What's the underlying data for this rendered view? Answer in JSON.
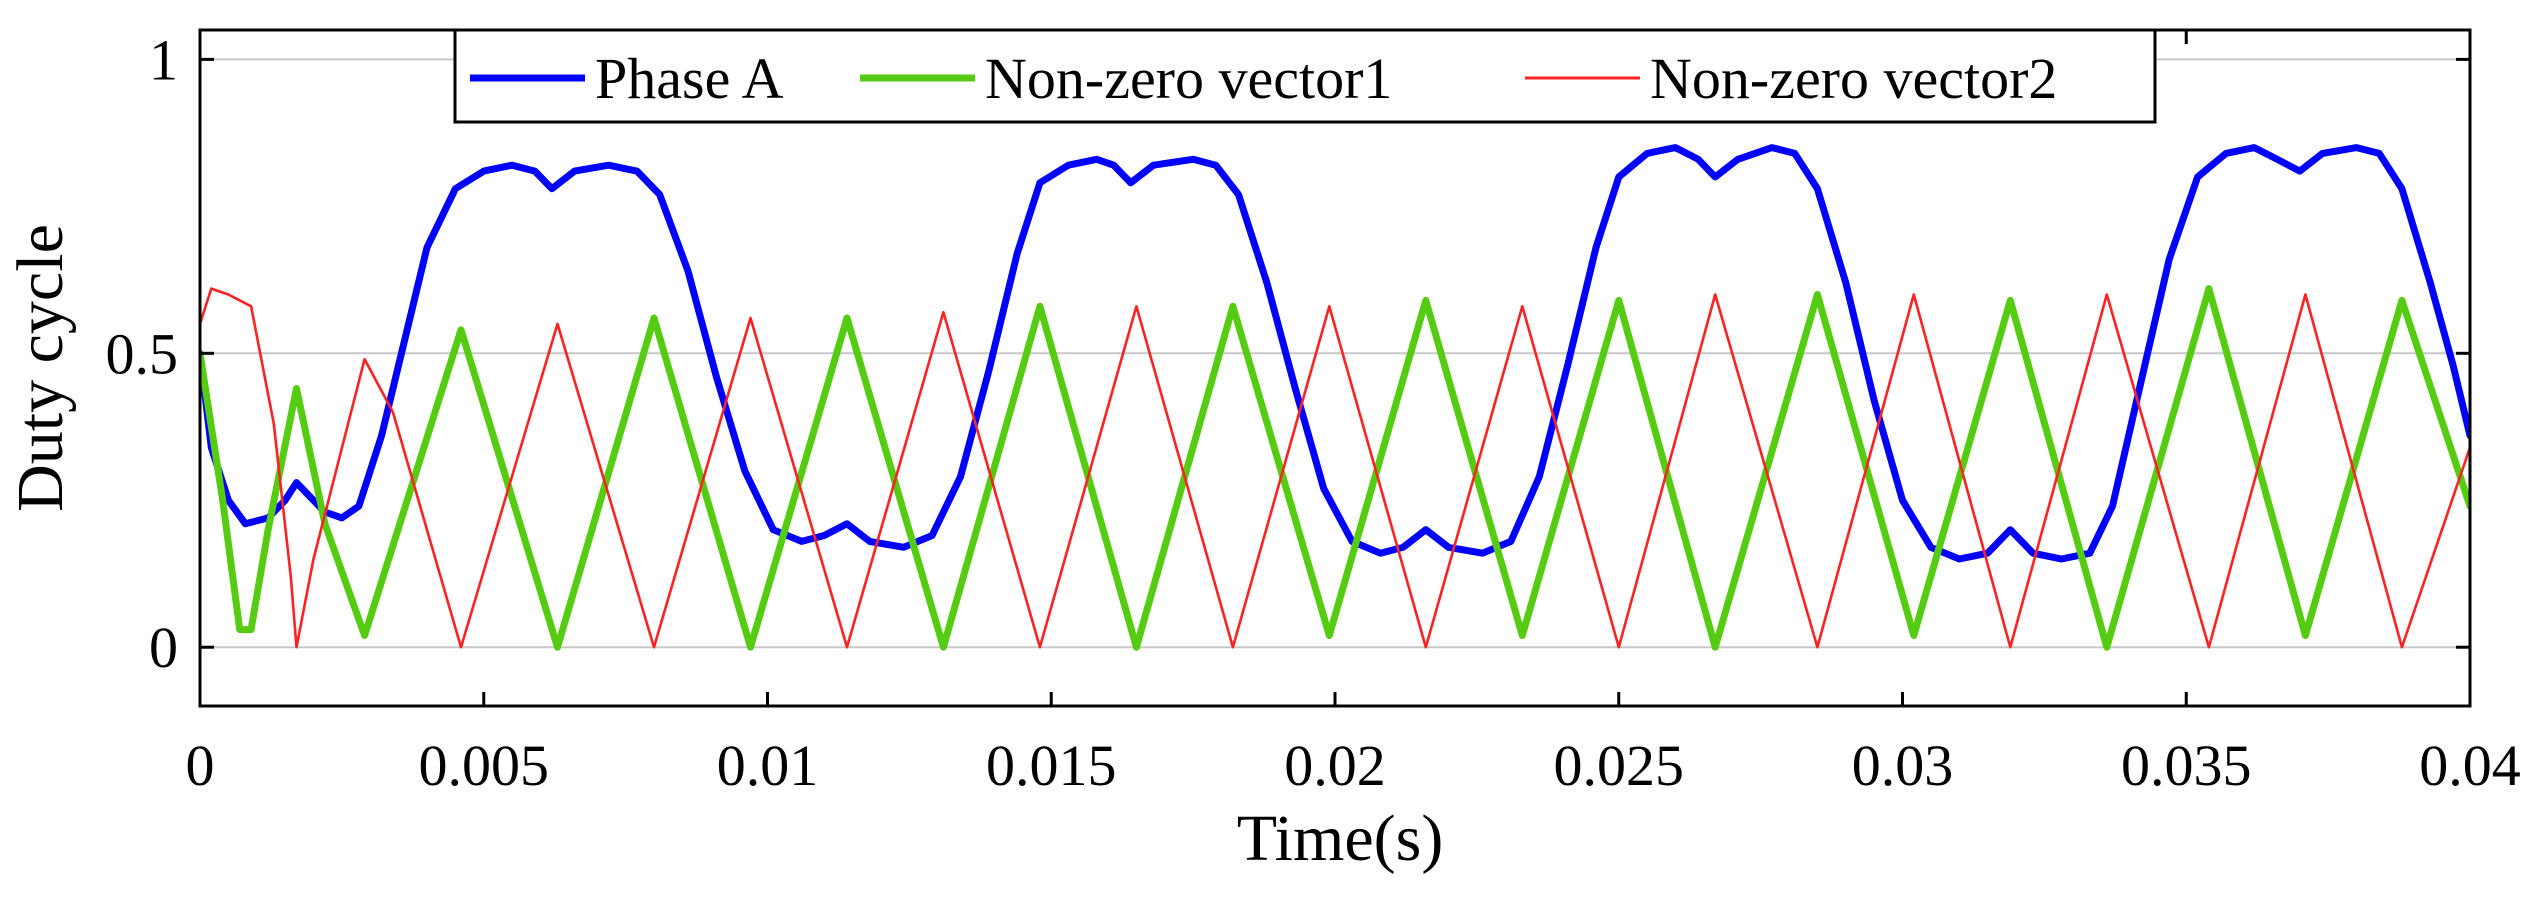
{
  "chart_data": {
    "type": "line",
    "xlabel": "Time(s)",
    "ylabel": "Duty cycle",
    "xlim": [
      0,
      0.04
    ],
    "ylim": [
      -0.1,
      1.05
    ],
    "xticks": [
      0,
      0.005,
      0.01,
      0.015,
      0.02,
      0.025,
      0.03,
      0.035,
      0.04
    ],
    "xtick_labels": [
      "0",
      "0.005",
      "0.01",
      "0.015",
      "0.02",
      "0.025",
      "0.03",
      "0.035",
      "0.04"
    ],
    "yticks": [
      0,
      0.5,
      1
    ],
    "ytick_labels": [
      "0",
      "0.5",
      "1"
    ],
    "grid": true,
    "legend_position": "top",
    "series": [
      {
        "name": "Phase A",
        "color": "#0000ff",
        "points": [
          [
            0.0,
            0.5
          ],
          [
            0.0002,
            0.34
          ],
          [
            0.0005,
            0.25
          ],
          [
            0.0008,
            0.21
          ],
          [
            0.0012,
            0.22
          ],
          [
            0.0015,
            0.25
          ],
          [
            0.0017,
            0.28
          ],
          [
            0.0019,
            0.26
          ],
          [
            0.0022,
            0.23
          ],
          [
            0.0025,
            0.22
          ],
          [
            0.0028,
            0.24
          ],
          [
            0.0032,
            0.36
          ],
          [
            0.0036,
            0.52
          ],
          [
            0.004,
            0.68
          ],
          [
            0.0045,
            0.78
          ],
          [
            0.005,
            0.81
          ],
          [
            0.0055,
            0.82
          ],
          [
            0.0059,
            0.81
          ],
          [
            0.0062,
            0.78
          ],
          [
            0.0066,
            0.81
          ],
          [
            0.0072,
            0.82
          ],
          [
            0.0077,
            0.81
          ],
          [
            0.0081,
            0.77
          ],
          [
            0.0086,
            0.64
          ],
          [
            0.0091,
            0.46
          ],
          [
            0.0096,
            0.3
          ],
          [
            0.0101,
            0.2
          ],
          [
            0.0106,
            0.18
          ],
          [
            0.011,
            0.19
          ],
          [
            0.0114,
            0.21
          ],
          [
            0.0118,
            0.18
          ],
          [
            0.0124,
            0.17
          ],
          [
            0.0129,
            0.19
          ],
          [
            0.0134,
            0.29
          ],
          [
            0.0139,
            0.47
          ],
          [
            0.0144,
            0.67
          ],
          [
            0.0148,
            0.79
          ],
          [
            0.0153,
            0.82
          ],
          [
            0.0158,
            0.83
          ],
          [
            0.0161,
            0.82
          ],
          [
            0.0164,
            0.79
          ],
          [
            0.0168,
            0.82
          ],
          [
            0.0175,
            0.83
          ],
          [
            0.0179,
            0.82
          ],
          [
            0.0183,
            0.77
          ],
          [
            0.0188,
            0.62
          ],
          [
            0.0193,
            0.44
          ],
          [
            0.0198,
            0.27
          ],
          [
            0.0203,
            0.18
          ],
          [
            0.0208,
            0.16
          ],
          [
            0.0212,
            0.17
          ],
          [
            0.0216,
            0.2
          ],
          [
            0.022,
            0.17
          ],
          [
            0.0226,
            0.16
          ],
          [
            0.0231,
            0.18
          ],
          [
            0.0236,
            0.29
          ],
          [
            0.0241,
            0.48
          ],
          [
            0.0246,
            0.68
          ],
          [
            0.025,
            0.8
          ],
          [
            0.0255,
            0.84
          ],
          [
            0.026,
            0.85
          ],
          [
            0.0264,
            0.83
          ],
          [
            0.0267,
            0.8
          ],
          [
            0.0271,
            0.83
          ],
          [
            0.0277,
            0.85
          ],
          [
            0.0281,
            0.84
          ],
          [
            0.0285,
            0.78
          ],
          [
            0.029,
            0.62
          ],
          [
            0.0295,
            0.42
          ],
          [
            0.03,
            0.25
          ],
          [
            0.0305,
            0.17
          ],
          [
            0.031,
            0.15
          ],
          [
            0.0315,
            0.16
          ],
          [
            0.0319,
            0.2
          ],
          [
            0.0323,
            0.16
          ],
          [
            0.0328,
            0.15
          ],
          [
            0.0333,
            0.16
          ],
          [
            0.0337,
            0.24
          ],
          [
            0.0342,
            0.45
          ],
          [
            0.0347,
            0.66
          ],
          [
            0.0352,
            0.8
          ],
          [
            0.0357,
            0.84
          ],
          [
            0.0362,
            0.85
          ],
          [
            0.0366,
            0.83
          ],
          [
            0.037,
            0.81
          ],
          [
            0.0374,
            0.84
          ],
          [
            0.038,
            0.85
          ],
          [
            0.0384,
            0.84
          ],
          [
            0.0388,
            0.78
          ],
          [
            0.0393,
            0.62
          ],
          [
            0.0397,
            0.48
          ],
          [
            0.04,
            0.36
          ]
        ]
      },
      {
        "name": "Non-zero vector1",
        "color": "#55cc11",
        "points": [
          [
            0.0,
            0.5
          ],
          [
            0.0004,
            0.25
          ],
          [
            0.0007,
            0.03
          ],
          [
            0.0009,
            0.03
          ],
          [
            0.0012,
            0.2
          ],
          [
            0.0017,
            0.44
          ],
          [
            0.0022,
            0.21
          ],
          [
            0.0029,
            0.02
          ],
          [
            0.0046,
            0.54
          ],
          [
            0.0063,
            0.0
          ],
          [
            0.008,
            0.56
          ],
          [
            0.0097,
            0.0
          ],
          [
            0.0114,
            0.56
          ],
          [
            0.0131,
            0.0
          ],
          [
            0.0148,
            0.58
          ],
          [
            0.0165,
            0.0
          ],
          [
            0.0182,
            0.58
          ],
          [
            0.0199,
            0.02
          ],
          [
            0.0216,
            0.59
          ],
          [
            0.0233,
            0.02
          ],
          [
            0.025,
            0.59
          ],
          [
            0.0267,
            0.0
          ],
          [
            0.0285,
            0.6
          ],
          [
            0.0302,
            0.02
          ],
          [
            0.0319,
            0.59
          ],
          [
            0.0336,
            0.0
          ],
          [
            0.0354,
            0.61
          ],
          [
            0.0371,
            0.02
          ],
          [
            0.0388,
            0.59
          ],
          [
            0.04,
            0.24
          ]
        ]
      },
      {
        "name": "Non-zero vector2",
        "color": "#ff2222",
        "points": [
          [
            0.0,
            0.55
          ],
          [
            0.0002,
            0.61
          ],
          [
            0.0005,
            0.6
          ],
          [
            0.0009,
            0.58
          ],
          [
            0.0013,
            0.38
          ],
          [
            0.0016,
            0.12
          ],
          [
            0.0017,
            0.0
          ],
          [
            0.002,
            0.15
          ],
          [
            0.0029,
            0.49
          ],
          [
            0.0034,
            0.4
          ],
          [
            0.0046,
            0.0
          ],
          [
            0.0063,
            0.55
          ],
          [
            0.008,
            0.0
          ],
          [
            0.0097,
            0.56
          ],
          [
            0.0114,
            0.0
          ],
          [
            0.0131,
            0.57
          ],
          [
            0.0148,
            0.0
          ],
          [
            0.0165,
            0.58
          ],
          [
            0.0182,
            0.0
          ],
          [
            0.0199,
            0.58
          ],
          [
            0.0216,
            0.0
          ],
          [
            0.0233,
            0.58
          ],
          [
            0.025,
            0.0
          ],
          [
            0.0267,
            0.6
          ],
          [
            0.0285,
            0.0
          ],
          [
            0.0302,
            0.6
          ],
          [
            0.0319,
            0.0
          ],
          [
            0.0336,
            0.6
          ],
          [
            0.0354,
            0.0
          ],
          [
            0.0371,
            0.6
          ],
          [
            0.0388,
            0.0
          ],
          [
            0.04,
            0.34
          ]
        ]
      }
    ]
  }
}
